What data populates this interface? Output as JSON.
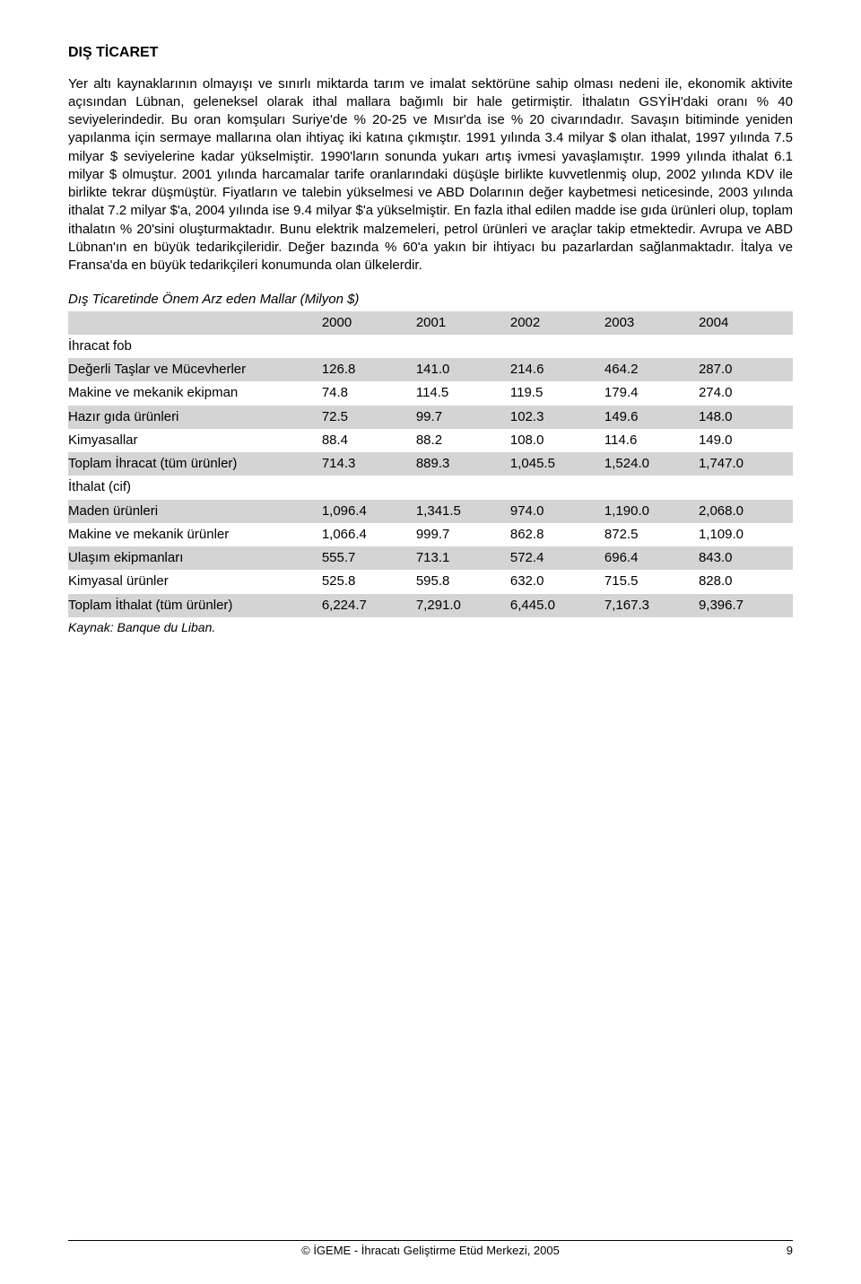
{
  "heading": "DIŞ TİCARET",
  "body": "Yer altı kaynaklarının olmayışı ve sınırlı miktarda tarım ve imalat sektörüne sahip olması nedeni ile, ekonomik aktivite açısından Lübnan, geleneksel olarak ithal mallara bağımlı bir hale getirmiştir. İthalatın GSYİH'daki oranı % 40 seviyelerindedir. Bu oran komşuları Suriye'de % 20-25 ve Mısır'da ise % 20 civarındadır. Savaşın bitiminde yeniden yapılanma için sermaye mallarına olan ihtiyaç iki katına çıkmıştır. 1991 yılında 3.4 milyar $ olan ithalat, 1997 yılında 7.5 milyar $ seviyelerine kadar yükselmiştir. 1990'ların sonunda yukarı artış ivmesi yavaşlamıştır. 1999 yılında ithalat 6.1 milyar $ olmuştur. 2001 yılında harcamalar tarife oranlarındaki düşüşle birlikte kuvvetlenmiş olup, 2002 yılında KDV ile birlikte tekrar düşmüştür.  Fiyatların ve talebin yükselmesi ve ABD Dolarının değer kaybetmesi neticesinde, 2003 yılında ithalat 7.2 milyar $'a, 2004 yılında ise 9.4 milyar $'a yükselmiştir. En fazla ithal edilen madde ise gıda ürünleri olup, toplam ithalatın % 20'sini oluşturmaktadır. Bunu elektrik malzemeleri, petrol ürünleri ve araçlar takip etmektedir. Avrupa ve ABD Lübnan'ın en büyük tedarikçileridir. Değer bazında % 60'a yakın bir ihtiyacı bu pazarlardan sağlanmaktadır. İtalya ve Fransa'da en büyük tedarikçileri konumunda olan ülkelerdir.",
  "table": {
    "title": "Dış Ticaretinde Önem Arz eden Mallar (Milyon $)",
    "years": [
      "2000",
      "2001",
      "2002",
      "2003",
      "2004"
    ],
    "section1_label": "İhracat fob",
    "rows1": [
      {
        "label": "Değerli Taşlar ve Mücevherler",
        "vals": [
          "126.8",
          "141.0",
          "214.6",
          "464.2",
          "287.0"
        ],
        "shaded": true
      },
      {
        "label": "Makine ve mekanik ekipman",
        "vals": [
          "74.8",
          "114.5",
          "119.5",
          "179.4",
          "274.0"
        ],
        "shaded": false
      },
      {
        "label": "Hazır gıda ürünleri",
        "vals": [
          "72.5",
          "99.7",
          "102.3",
          "149.6",
          "148.0"
        ],
        "shaded": true
      },
      {
        "label": "Kimyasallar",
        "vals": [
          "88.4",
          "88.2",
          "108.0",
          "114.6",
          "149.0"
        ],
        "shaded": false
      },
      {
        "label": "Toplam İhracat (tüm ürünler)",
        "vals": [
          "714.3",
          "889.3",
          "1,045.5",
          "1,524.0",
          "1,747.0"
        ],
        "shaded": true
      }
    ],
    "section2_label": "İthalat (cif)",
    "rows2": [
      {
        "label": "Maden ürünleri",
        "vals": [
          "1,096.4",
          "1,341.5",
          "974.0",
          "1,190.0",
          "2,068.0"
        ],
        "shaded": true
      },
      {
        "label": "Makine ve mekanik ürünler",
        "vals": [
          "1,066.4",
          "999.7",
          "862.8",
          "872.5",
          "1,109.0"
        ],
        "shaded": false
      },
      {
        "label": "Ulaşım ekipmanları",
        "vals": [
          "555.7",
          "713.1",
          "572.4",
          "696.4",
          "843.0"
        ],
        "shaded": true
      },
      {
        "label": "Kimyasal ürünler",
        "vals": [
          "525.8",
          "595.8",
          "632.0",
          "715.5",
          "828.0"
        ],
        "shaded": false
      },
      {
        "label": "Toplam İthalat (tüm ürünler)",
        "vals": [
          "6,224.7",
          "7,291.0",
          "6,445.0",
          "7,167.3",
          "9,396.7"
        ],
        "shaded": true
      }
    ],
    "source": "Kaynak: Banque du Liban."
  },
  "footer": {
    "copyright": "© İGEME - İhracatı Geliştirme Etüd Merkezi, 2005",
    "page": "9"
  }
}
